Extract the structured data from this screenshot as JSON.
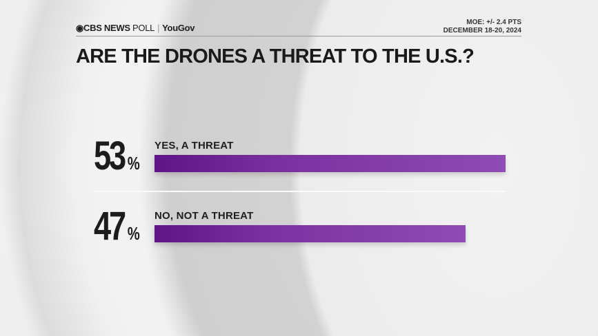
{
  "header": {
    "brand": "CBS NEWS",
    "brand_suffix": "POLL",
    "partner": "YouGov",
    "moe": "MOE: +/- 2.4 PTS",
    "dates": "DECEMBER 18-20, 2024"
  },
  "chart_data": {
    "type": "bar",
    "orientation": "horizontal",
    "title": "ARE THE DRONES A THREAT TO THE U.S.?",
    "categories": [
      "YES, A THREAT",
      "NO, NOT A THREAT"
    ],
    "values": [
      53,
      47
    ],
    "value_labels": [
      "53",
      "47"
    ],
    "unit": "%",
    "xlim": [
      0,
      100
    ],
    "grid": false,
    "colors": {
      "bar_start": "#5f1487",
      "bar_end": "#8e4cb4"
    }
  }
}
